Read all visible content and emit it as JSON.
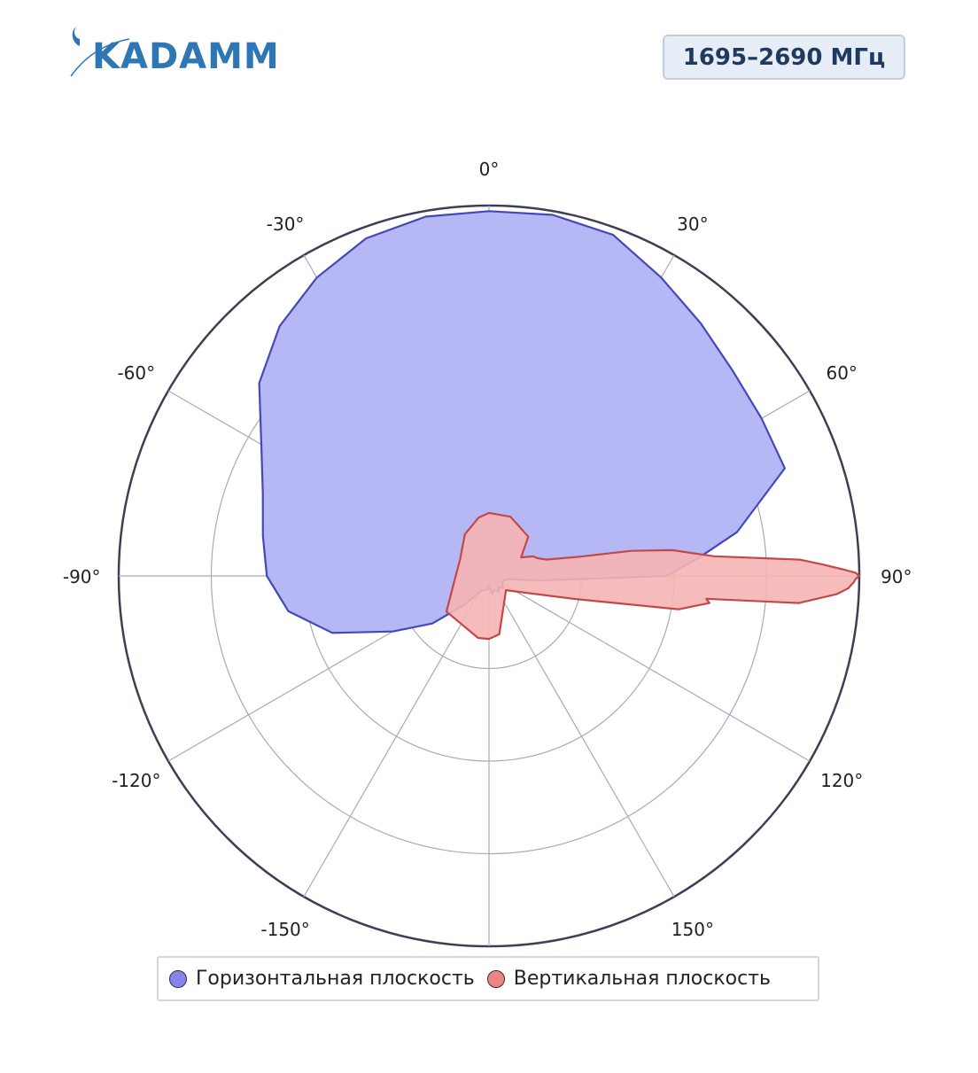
{
  "header": {
    "logo_text": "KADAMM",
    "band_label": "1695–2690 МГц"
  },
  "colors": {
    "horizontal_fill": "#b6b7f5",
    "horizontal_stroke": "#4448b8",
    "horizontal_swatch": "#8585ee",
    "vertical_fill": "#f5b5b5",
    "vertical_stroke": "#c34848",
    "vertical_swatch": "#ef8484",
    "grid": "#a8aabb",
    "outer_ring": "#3d4055",
    "logo": "#2f76b5"
  },
  "chart_data": {
    "type": "polar",
    "angular_unit": "degrees",
    "zero_direction": "top",
    "direction": "clockwise",
    "angular_ticks": [
      0,
      30,
      60,
      90,
      120,
      150,
      180,
      -150,
      -120,
      -90,
      -60,
      -30
    ],
    "angular_tick_labels": [
      "0°",
      "30°",
      "60°",
      "90°",
      "120°",
      "150°",
      "",
      "-150°",
      "-120°",
      "-90°",
      "-60°",
      "-30°"
    ],
    "radial_range": [
      0,
      1
    ],
    "radial_rings": [
      0.25,
      0.5,
      0.75,
      1.0
    ],
    "grid": true,
    "legend_position": "bottom",
    "series": [
      {
        "name": "Горизонтальная плоскость",
        "theta": [
          0,
          10,
          20,
          30,
          40,
          50,
          60,
          70,
          80,
          85,
          90,
          95,
          100,
          110,
          120,
          130,
          140,
          150,
          160,
          170,
          180,
          -170,
          -160,
          -150,
          -140,
          -130,
          -120,
          -110,
          -100,
          -90,
          -80,
          -70,
          -60,
          -50,
          -40,
          -30,
          -20,
          -10,
          0
        ],
        "r": [
          0.985,
          0.99,
          0.98,
          0.93,
          0.89,
          0.86,
          0.85,
          0.85,
          0.68,
          0.57,
          0.48,
          0.14,
          0.05,
          0.04,
          0.04,
          0.05,
          0.04,
          0.05,
          0.04,
          0.05,
          0.03,
          0.04,
          0.04,
          0.05,
          0.1,
          0.2,
          0.3,
          0.45,
          0.55,
          0.6,
          0.62,
          0.65,
          0.71,
          0.81,
          0.88,
          0.93,
          0.97,
          0.985,
          0.985
        ]
      },
      {
        "name": "Вертикальная плоскость",
        "theta": [
          0,
          20,
          45,
          60,
          66,
          70,
          74,
          78,
          80,
          82,
          85,
          87,
          88,
          89,
          89.5,
          90,
          90.5,
          91,
          92,
          93,
          95,
          96,
          97,
          98,
          100,
          105,
          130,
          170,
          180,
          -170,
          -130,
          -90,
          -60,
          -30,
          -10,
          0
        ],
        "r": [
          0.17,
          0.17,
          0.15,
          0.1,
          0.13,
          0.14,
          0.16,
          0.25,
          0.39,
          0.5,
          0.61,
          0.84,
          0.9,
          0.96,
          0.99,
          1.0,
          0.99,
          0.985,
          0.97,
          0.94,
          0.84,
          0.59,
          0.6,
          0.57,
          0.52,
          0.24,
          0.06,
          0.16,
          0.17,
          0.17,
          0.15,
          0.09,
          0.09,
          0.13,
          0.16,
          0.17
        ]
      }
    ]
  },
  "legend": {
    "items": [
      {
        "label": "Горизонтальная плоскость"
      },
      {
        "label": "Вертикальная плоскость"
      }
    ]
  }
}
